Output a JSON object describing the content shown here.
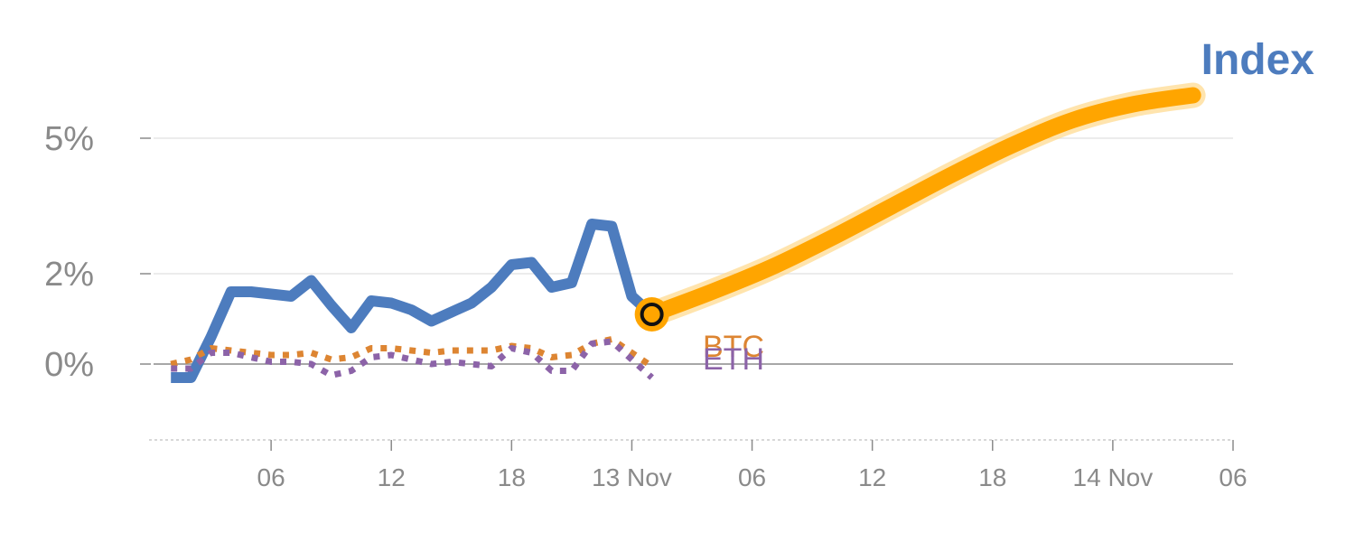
{
  "chart_data": {
    "type": "line",
    "title": "Index",
    "y_ticks": [
      {
        "value": 5,
        "label": "5%"
      },
      {
        "value": 2,
        "label": "2%"
      },
      {
        "value": 0,
        "label": "0%"
      }
    ],
    "ylim": [
      -2,
      8
    ],
    "x_ticks": [
      {
        "value": 6,
        "label": "06"
      },
      {
        "value": 12,
        "label": "12"
      },
      {
        "value": 18,
        "label": "18"
      },
      {
        "value": 24,
        "label": "13 Nov"
      },
      {
        "value": 30,
        "label": "06"
      },
      {
        "value": 36,
        "label": "12"
      },
      {
        "value": 42,
        "label": "18"
      },
      {
        "value": 48,
        "label": "14 Nov"
      },
      {
        "value": 54,
        "label": "06"
      }
    ],
    "xlim": [
      0,
      54
    ],
    "grid": true,
    "series": [
      {
        "name": "",
        "role": "index",
        "color": "#4d7cbe",
        "x": [
          1,
          2,
          3,
          4,
          5,
          6,
          7,
          8,
          9,
          10,
          11,
          12,
          13,
          14,
          15,
          16,
          17,
          18,
          19,
          20,
          21,
          22,
          23,
          24,
          25,
          26,
          27,
          28
        ],
        "values": [
          -0.3,
          -0.3,
          0.6,
          1.6,
          1.6,
          1.55,
          1.5,
          1.85,
          1.3,
          0.8,
          1.4,
          1.35,
          1.2,
          0.95,
          1.15,
          1.35,
          1.7,
          2.2,
          2.25,
          1.7,
          1.8,
          3.1,
          3.05,
          1.5,
          1.1,
          null,
          null,
          null
        ]
      },
      {
        "name": "BTC",
        "color": "#dd8532",
        "x": [
          1,
          2,
          3,
          4,
          5,
          6,
          7,
          8,
          9,
          10,
          11,
          12,
          13,
          14,
          15,
          16,
          17,
          18,
          19,
          20,
          21,
          22,
          23,
          24,
          25
        ],
        "values": [
          0.0,
          0.1,
          0.35,
          0.3,
          0.25,
          0.2,
          0.2,
          0.25,
          0.1,
          0.15,
          0.35,
          0.35,
          0.3,
          0.25,
          0.3,
          0.3,
          0.3,
          0.4,
          0.35,
          0.15,
          0.2,
          0.45,
          0.55,
          0.25,
          -0.05
        ]
      },
      {
        "name": "ETH",
        "color": "#8c63a8",
        "x": [
          1,
          2,
          3,
          4,
          5,
          6,
          7,
          8,
          9,
          10,
          11,
          12,
          13,
          14,
          15,
          16,
          17,
          18,
          19,
          20,
          21,
          22,
          23,
          24,
          25
        ],
        "values": [
          -0.1,
          -0.1,
          0.25,
          0.25,
          0.15,
          0.05,
          0.05,
          0.0,
          -0.25,
          -0.15,
          0.15,
          0.2,
          0.1,
          0.0,
          0.05,
          0.0,
          -0.05,
          0.35,
          0.25,
          -0.15,
          -0.15,
          0.45,
          0.5,
          0.1,
          -0.3
        ]
      },
      {
        "name": "",
        "role": "projection",
        "color": "#ffa500",
        "x": [
          25,
          28,
          31,
          34,
          37,
          40,
          43,
          46,
          49,
          52
        ],
        "values": [
          1.1,
          1.6,
          2.15,
          2.8,
          3.5,
          4.2,
          4.85,
          5.4,
          5.75,
          5.95
        ]
      }
    ],
    "highlight_point": {
      "x": 25,
      "value": 1.1
    }
  }
}
